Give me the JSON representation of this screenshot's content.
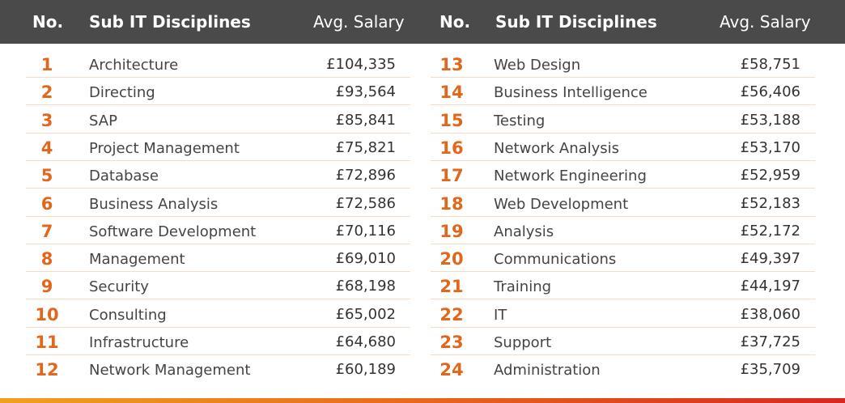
{
  "header": {
    "no": "No.",
    "discipline": "Sub IT Disciplines",
    "salary": "Avg. Salary"
  },
  "left_rows": [
    {
      "no": "1",
      "name": "Architecture",
      "salary": "£104,335"
    },
    {
      "no": "2",
      "name": "Directing",
      "salary": "£93,564"
    },
    {
      "no": "3",
      "name": "SAP",
      "salary": "£85,841"
    },
    {
      "no": "4",
      "name": "Project Management",
      "salary": "£75,821"
    },
    {
      "no": "5",
      "name": "Database",
      "salary": "£72,896"
    },
    {
      "no": "6",
      "name": "Business Analysis",
      "salary": "£72,586"
    },
    {
      "no": "7",
      "name": "Software Development",
      "salary": "£70,116"
    },
    {
      "no": "8",
      "name": "Management",
      "salary": "£69,010"
    },
    {
      "no": "9",
      "name": "Security",
      "salary": "£68,198"
    },
    {
      "no": "10",
      "name": "Consulting",
      "salary": "£65,002"
    },
    {
      "no": "11",
      "name": "Infrastructure",
      "salary": "£64,680"
    },
    {
      "no": "12",
      "name": "Network Management",
      "salary": "£60,189"
    }
  ],
  "right_rows": [
    {
      "no": "13",
      "name": "Web Design",
      "salary": "£58,751"
    },
    {
      "no": "14",
      "name": "Business Intelligence",
      "salary": "£56,406"
    },
    {
      "no": "15",
      "name": "Testing",
      "salary": "£53,188"
    },
    {
      "no": "16",
      "name": "Network Analysis",
      "salary": "£53,170"
    },
    {
      "no": "17",
      "name": "Network Engineering",
      "salary": "£52,959"
    },
    {
      "no": "18",
      "name": "Web Development",
      "salary": "£52,183"
    },
    {
      "no": "19",
      "name": "Analysis",
      "salary": "£52,172"
    },
    {
      "no": "20",
      "name": "Communications",
      "salary": "£49,397"
    },
    {
      "no": "21",
      "name": "Training",
      "salary": "£44,197"
    },
    {
      "no": "22",
      "name": "IT",
      "salary": "£38,060"
    },
    {
      "no": "23",
      "name": "Support",
      "salary": "£37,725"
    },
    {
      "no": "24",
      "name": "Administration",
      "salary": "£35,709"
    }
  ],
  "colors": {
    "header_bg": "#4a4a4a",
    "number": "#e2661b",
    "separator": "#f6dcc5",
    "bar_start": "#f0a11d",
    "bar_end": "#d9261f"
  }
}
